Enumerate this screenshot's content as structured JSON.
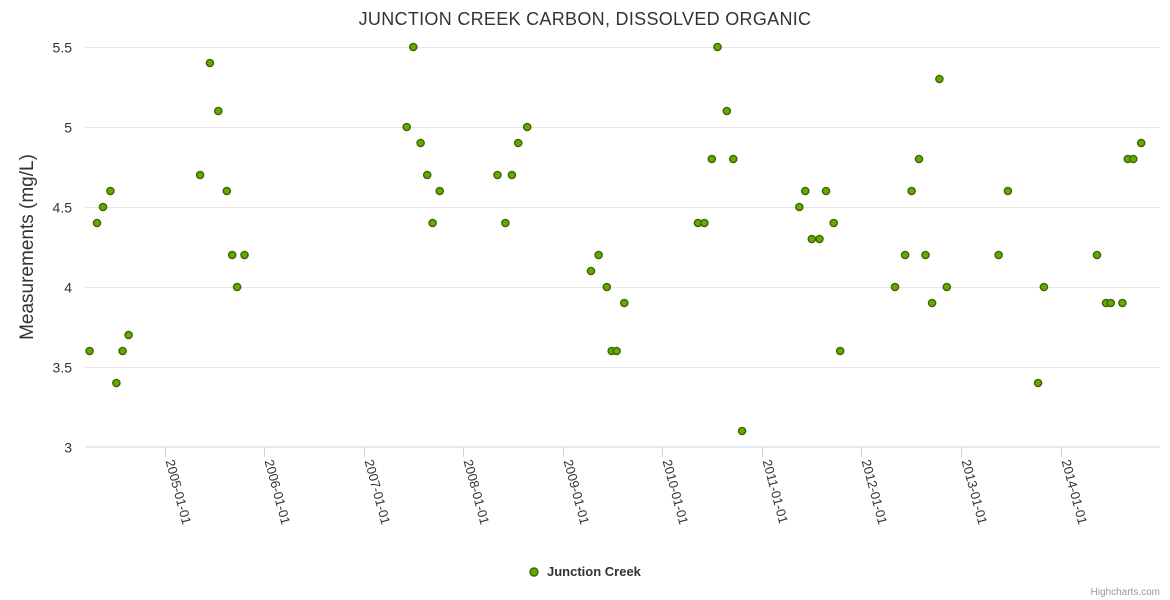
{
  "chart_data": {
    "type": "scatter",
    "title": "JUNCTION CREEK CARBON, DISSOLVED ORGANIC",
    "ylabel": "Measurements (mg/L)",
    "xlabel": "",
    "ylim": [
      3,
      5.5
    ],
    "yticks": [
      3,
      3.5,
      4,
      4.5,
      5,
      5.5
    ],
    "xlim": [
      "2004-03-15",
      "2014-12-31"
    ],
    "xticks": [
      "2005-01-01",
      "2006-01-01",
      "2007-01-01",
      "2008-01-01",
      "2009-01-01",
      "2010-01-01",
      "2011-01-01",
      "2012-01-01",
      "2013-01-01",
      "2014-01-01"
    ],
    "grid": true,
    "legend_position": "bottom-center",
    "series": [
      {
        "name": "Junction Creek",
        "color": "#66aa00",
        "border_color": "#3d6600",
        "points": [
          [
            "2004-04-01",
            3.6
          ],
          [
            "2004-04-28",
            4.4
          ],
          [
            "2004-05-20",
            4.5
          ],
          [
            "2004-06-16",
            4.6
          ],
          [
            "2004-07-08",
            3.4
          ],
          [
            "2004-07-31",
            3.6
          ],
          [
            "2004-08-22",
            3.7
          ],
          [
            "2005-05-11",
            4.7
          ],
          [
            "2005-06-16",
            5.4
          ],
          [
            "2005-07-17",
            5.1
          ],
          [
            "2005-08-17",
            4.6
          ],
          [
            "2005-09-06",
            4.2
          ],
          [
            "2005-09-24",
            4.0
          ],
          [
            "2005-10-21",
            4.2
          ],
          [
            "2007-06-08",
            5.0
          ],
          [
            "2007-07-02",
            5.5
          ],
          [
            "2007-07-29",
            4.9
          ],
          [
            "2007-08-22",
            4.7
          ],
          [
            "2007-09-11",
            4.4
          ],
          [
            "2007-10-07",
            4.6
          ],
          [
            "2008-05-06",
            4.7
          ],
          [
            "2008-06-04",
            4.4
          ],
          [
            "2008-06-28",
            4.7
          ],
          [
            "2008-07-21",
            4.9
          ],
          [
            "2008-08-23",
            5.0
          ],
          [
            "2009-04-14",
            4.1
          ],
          [
            "2009-05-12",
            4.2
          ],
          [
            "2009-06-11",
            4.0
          ],
          [
            "2009-06-29",
            3.6
          ],
          [
            "2009-07-17",
            3.6
          ],
          [
            "2009-08-14",
            3.9
          ],
          [
            "2010-05-11",
            4.4
          ],
          [
            "2010-06-04",
            4.4
          ],
          [
            "2010-07-01",
            4.8
          ],
          [
            "2010-07-22",
            5.5
          ],
          [
            "2010-08-25",
            5.1
          ],
          [
            "2010-09-18",
            4.8
          ],
          [
            "2010-10-20",
            3.1
          ],
          [
            "2011-05-18",
            4.5
          ],
          [
            "2011-06-09",
            4.6
          ],
          [
            "2011-07-03",
            4.3
          ],
          [
            "2011-07-31",
            4.3
          ],
          [
            "2011-08-24",
            4.6
          ],
          [
            "2011-09-21",
            4.4
          ],
          [
            "2011-10-15",
            3.6
          ],
          [
            "2012-05-03",
            4.0
          ],
          [
            "2012-06-09",
            4.2
          ],
          [
            "2012-07-03",
            4.6
          ],
          [
            "2012-07-30",
            4.8
          ],
          [
            "2012-08-23",
            4.2
          ],
          [
            "2012-09-16",
            3.9
          ],
          [
            "2012-10-13",
            5.3
          ],
          [
            "2012-11-09",
            4.0
          ],
          [
            "2013-05-18",
            4.2
          ],
          [
            "2013-06-21",
            4.6
          ],
          [
            "2013-10-10",
            3.4
          ],
          [
            "2013-10-31",
            4.0
          ],
          [
            "2014-05-14",
            4.2
          ],
          [
            "2014-06-16",
            3.9
          ],
          [
            "2014-07-03",
            3.9
          ],
          [
            "2014-08-15",
            3.9
          ],
          [
            "2014-09-04",
            4.8
          ],
          [
            "2014-09-24",
            4.8
          ],
          [
            "2014-10-23",
            4.9
          ]
        ]
      }
    ]
  },
  "credits": "Highcharts.com"
}
